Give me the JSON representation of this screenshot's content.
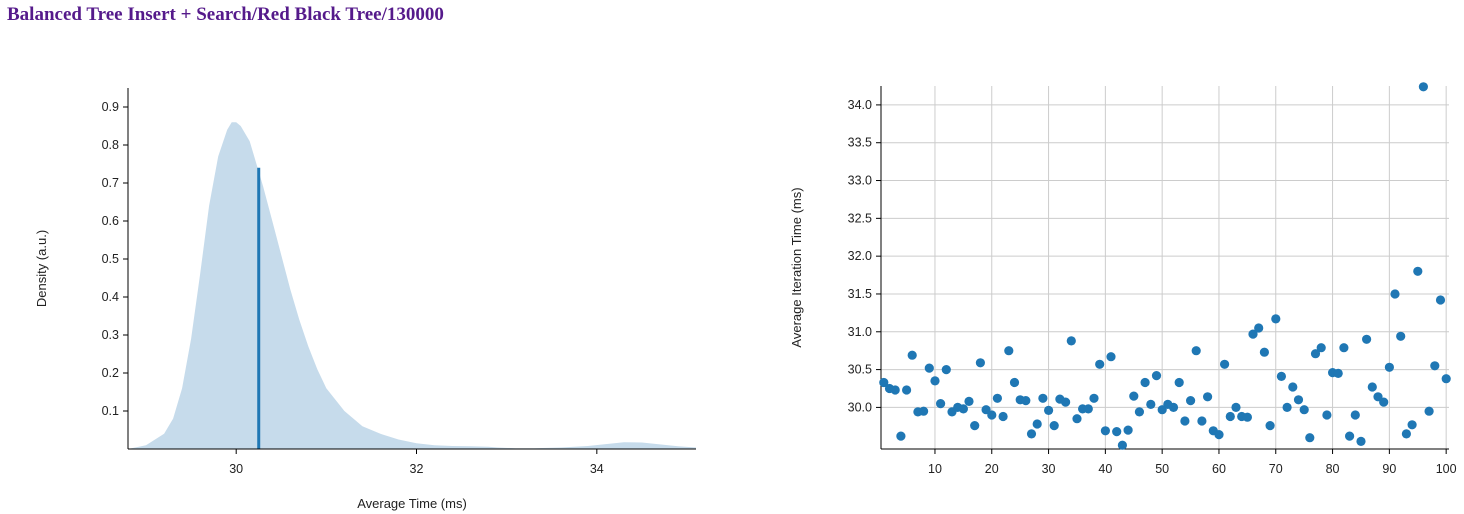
{
  "title": "Balanced Tree Insert + Search/Red Black Tree/130000",
  "colors": {
    "title": "#551a8b",
    "density_fill": "#c6dbeb",
    "mean_line": "#1f77b4",
    "points": "#1f77b4",
    "grid": "#cccccc"
  },
  "chart_data": [
    {
      "type": "area",
      "xlabel": "Average Time (ms)",
      "ylabel": "Density (a.u.)",
      "xlim": [
        28.8,
        35.1
      ],
      "ylim": [
        0,
        0.95
      ],
      "xticks": [
        30,
        32,
        34
      ],
      "yticks": [
        0.1,
        0.2,
        0.3,
        0.4,
        0.5,
        0.6,
        0.7,
        0.8,
        0.9
      ],
      "grid": false,
      "x": [
        28.8,
        29.0,
        29.2,
        29.3,
        29.4,
        29.5,
        29.6,
        29.7,
        29.8,
        29.9,
        29.95,
        30.0,
        30.05,
        30.1,
        30.15,
        30.2,
        30.3,
        30.4,
        30.5,
        30.6,
        30.7,
        30.8,
        30.9,
        31.0,
        31.2,
        31.4,
        31.6,
        31.8,
        32.0,
        32.2,
        32.4,
        32.6,
        32.8,
        32.9,
        33.1,
        33.3,
        33.6,
        33.9,
        34.1,
        34.3,
        34.5,
        34.7,
        34.9,
        35.1
      ],
      "y": [
        0.0,
        0.01,
        0.04,
        0.08,
        0.16,
        0.29,
        0.46,
        0.64,
        0.77,
        0.84,
        0.86,
        0.86,
        0.85,
        0.83,
        0.81,
        0.77,
        0.69,
        0.6,
        0.51,
        0.42,
        0.34,
        0.27,
        0.21,
        0.16,
        0.1,
        0.06,
        0.04,
        0.025,
        0.015,
        0.01,
        0.008,
        0.007,
        0.006,
        0.004,
        0.002,
        0.002,
        0.004,
        0.008,
        0.013,
        0.018,
        0.017,
        0.012,
        0.007,
        0.004
      ],
      "mean": {
        "x": 30.25,
        "y": 0.74
      }
    },
    {
      "type": "scatter",
      "xlabel": "",
      "ylabel": "Average Iteration Time (ms)",
      "xlim": [
        0.5,
        100.5
      ],
      "ylim": [
        29.45,
        34.25
      ],
      "xticks": [
        10,
        20,
        30,
        40,
        50,
        60,
        70,
        80,
        90,
        100
      ],
      "yticks": [
        30.0,
        30.5,
        31.0,
        31.5,
        32.0,
        32.5,
        33.0,
        33.5,
        34.0
      ],
      "grid": true,
      "x": [
        1,
        2,
        3,
        4,
        5,
        6,
        7,
        8,
        9,
        10,
        11,
        12,
        13,
        14,
        15,
        16,
        17,
        18,
        19,
        20,
        21,
        22,
        23,
        24,
        25,
        26,
        27,
        28,
        29,
        30,
        31,
        32,
        33,
        34,
        35,
        36,
        37,
        38,
        39,
        40,
        41,
        42,
        43,
        44,
        45,
        46,
        47,
        48,
        49,
        50,
        51,
        52,
        53,
        54,
        55,
        56,
        57,
        58,
        59,
        60,
        61,
        62,
        63,
        64,
        65,
        66,
        67,
        68,
        69,
        70,
        71,
        72,
        73,
        74,
        75,
        76,
        77,
        78,
        79,
        80,
        81,
        82,
        83,
        84,
        85,
        86,
        87,
        88,
        89,
        90,
        91,
        92,
        93,
        94,
        95,
        96,
        97,
        98,
        99,
        100
      ],
      "y": [
        30.33,
        30.25,
        30.23,
        29.62,
        30.23,
        30.69,
        29.94,
        29.95,
        30.52,
        30.35,
        30.05,
        30.5,
        29.94,
        30.0,
        29.98,
        30.08,
        29.76,
        30.59,
        29.97,
        29.9,
        30.12,
        29.88,
        30.75,
        30.33,
        30.1,
        30.09,
        29.65,
        29.78,
        30.12,
        29.96,
        29.76,
        30.11,
        30.07,
        30.88,
        29.85,
        29.98,
        29.98,
        30.12,
        30.57,
        29.69,
        30.67,
        29.68,
        29.5,
        29.7,
        30.15,
        29.94,
        30.33,
        30.04,
        30.42,
        29.97,
        30.04,
        30.0,
        30.33,
        29.82,
        30.09,
        30.75,
        29.82,
        30.14,
        29.69,
        29.64,
        30.57,
        29.88,
        30.0,
        29.88,
        29.87,
        30.97,
        31.05,
        30.73,
        29.76,
        31.17,
        30.41,
        30.0,
        30.27,
        30.1,
        29.97,
        29.6,
        30.71,
        30.79,
        29.9,
        30.46,
        30.45,
        30.79,
        29.62,
        29.9,
        29.55,
        30.9,
        30.27,
        30.14,
        30.07,
        30.53,
        31.5,
        30.94,
        29.65,
        29.77,
        31.8,
        34.24,
        29.95,
        30.55,
        31.42,
        30.38
      ]
    }
  ]
}
